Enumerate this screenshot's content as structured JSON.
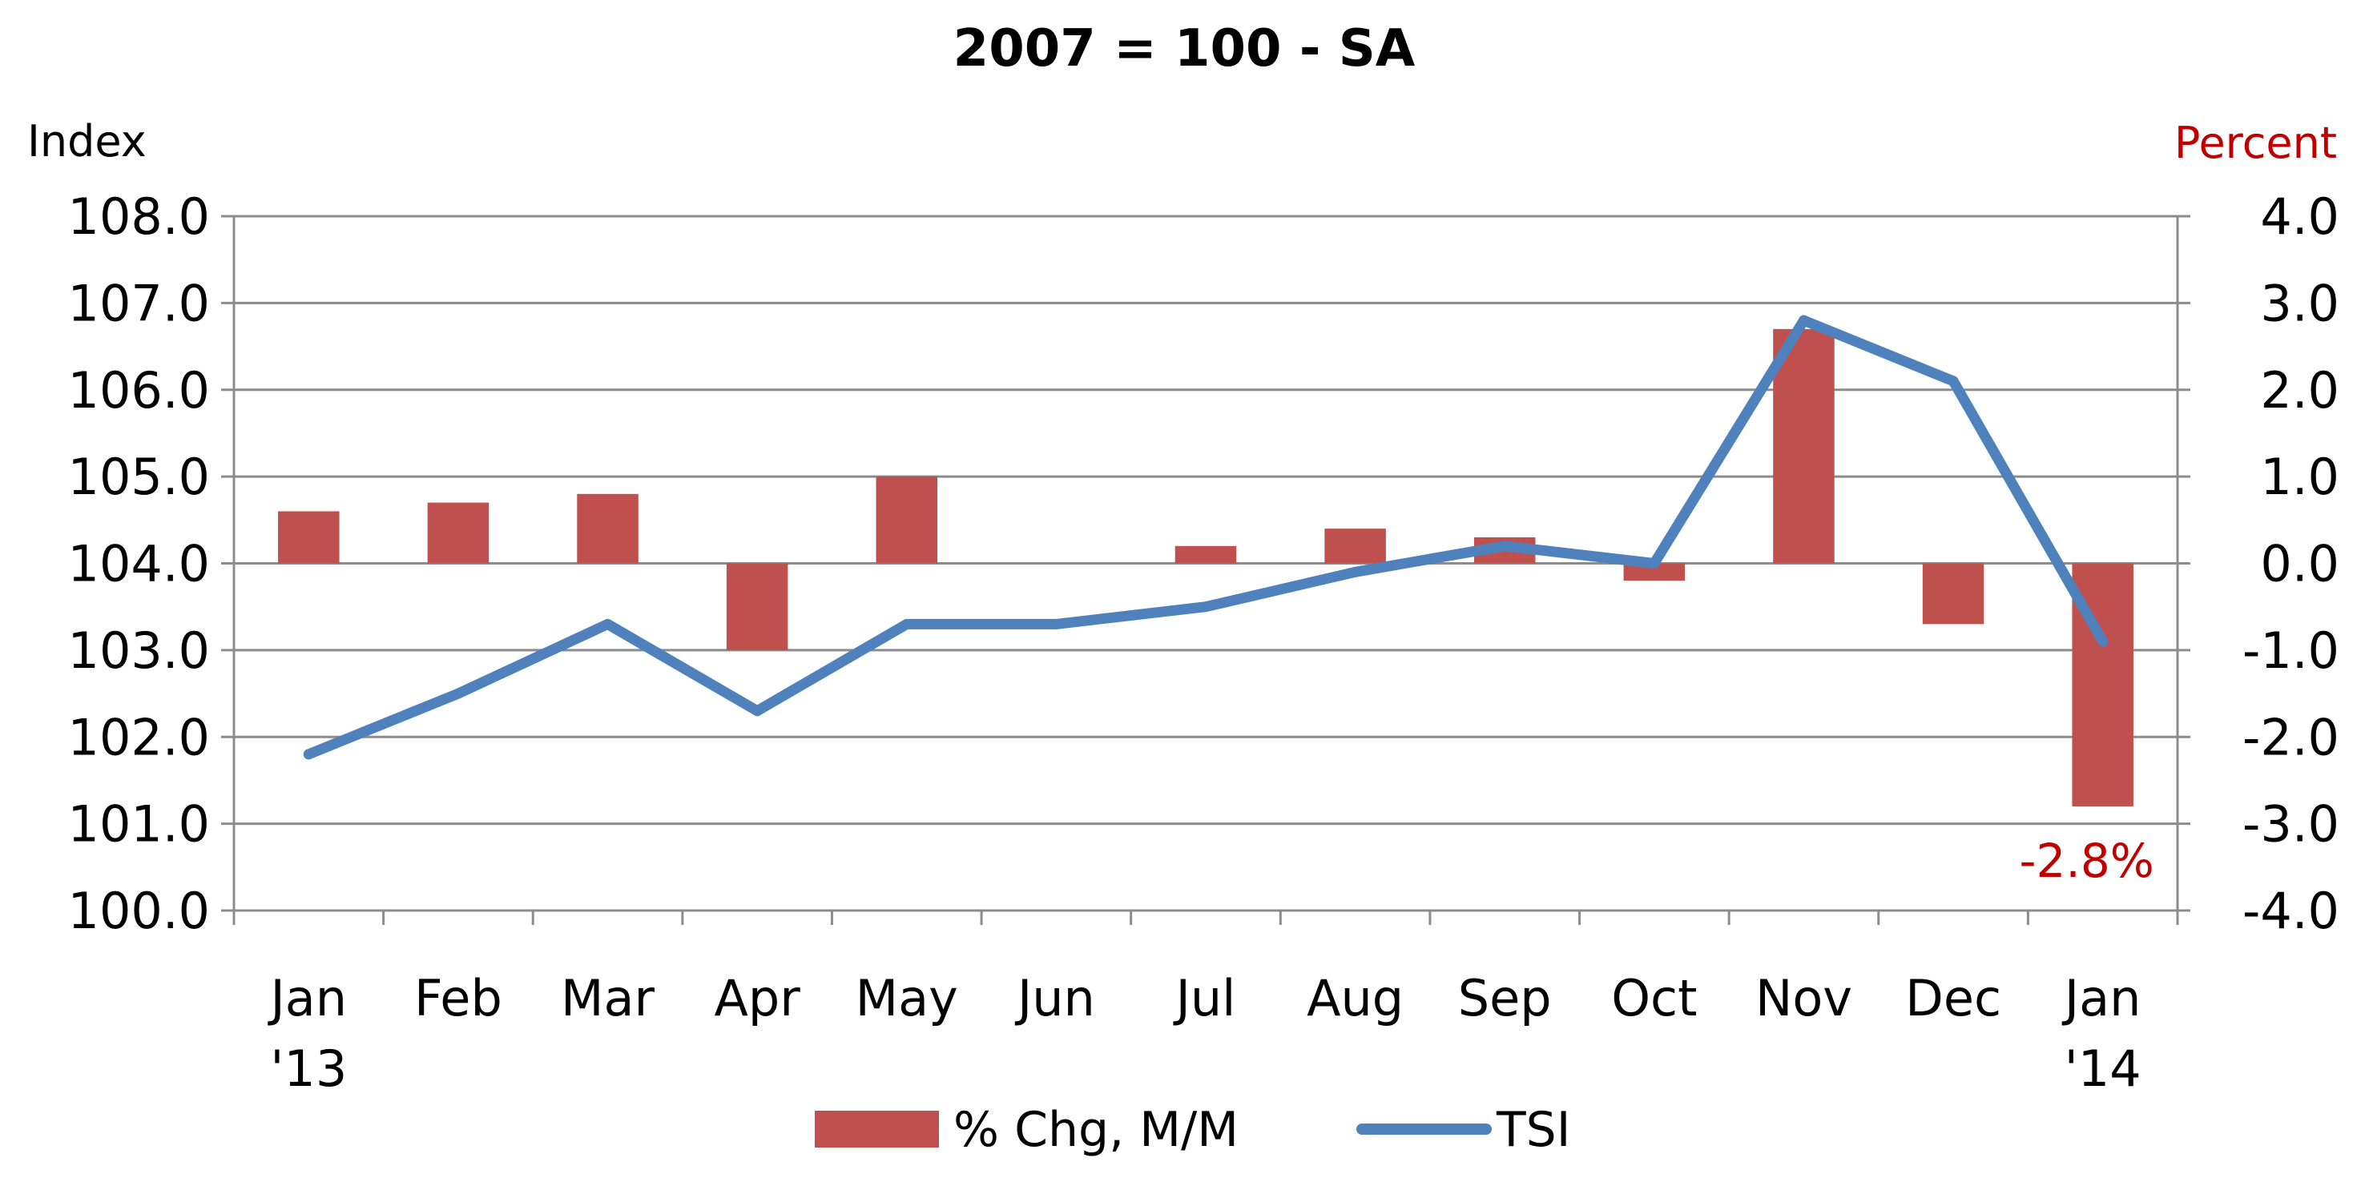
{
  "chart_data": {
    "type": "bar+line",
    "title": "2007 = 100 - SA",
    "ylabel_left": "Index",
    "ylabel_right": "Percent",
    "categories": [
      [
        "Jan",
        "'13"
      ],
      [
        "Feb",
        ""
      ],
      [
        "Mar",
        ""
      ],
      [
        "Apr",
        ""
      ],
      [
        "May",
        ""
      ],
      [
        "Jun",
        ""
      ],
      [
        "Jul",
        ""
      ],
      [
        "Aug",
        ""
      ],
      [
        "Sep",
        ""
      ],
      [
        "Oct",
        ""
      ],
      [
        "Nov",
        ""
      ],
      [
        "Dec",
        ""
      ],
      [
        "Jan",
        "'14"
      ]
    ],
    "y_left": {
      "min": 100.0,
      "max": 108.0,
      "step": 1.0,
      "ticks": [
        "100.0",
        "101.0",
        "102.0",
        "103.0",
        "104.0",
        "105.0",
        "106.0",
        "107.0",
        "108.0"
      ]
    },
    "y_right": {
      "min": -4.0,
      "max": 4.0,
      "step": 1.0,
      "ticks": [
        "-4.0",
        "-3.0",
        "-2.0",
        "-1.0",
        "0.0",
        "1.0",
        "2.0",
        "3.0",
        "4.0"
      ]
    },
    "series": [
      {
        "name": "% Chg, M/M",
        "type": "bar",
        "axis": "right",
        "color": "#C0504D",
        "values": [
          0.6,
          0.7,
          0.8,
          -1.0,
          1.0,
          0.0,
          0.2,
          0.4,
          0.3,
          -0.2,
          2.7,
          -0.7,
          -2.8
        ]
      },
      {
        "name": "TSI",
        "type": "line",
        "axis": "left",
        "color": "#4F81BD",
        "values": [
          101.8,
          102.5,
          103.3,
          102.3,
          103.3,
          103.3,
          103.5,
          103.9,
          104.2,
          104.0,
          106.8,
          106.1,
          103.1
        ]
      }
    ],
    "annotations": [
      {
        "category_index": 12,
        "text": "-2.8%",
        "color": "#C00000"
      }
    ],
    "grid": true,
    "legend": "bottom"
  }
}
